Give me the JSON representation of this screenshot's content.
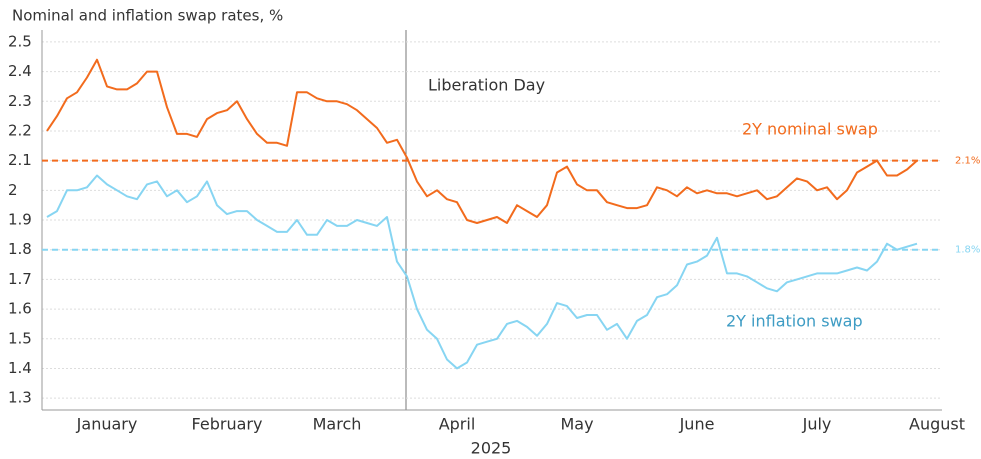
{
  "chart_data": {
    "type": "line",
    "title": "Nominal and inflation swap rates, %",
    "x_label": "2025",
    "annotation": "Liberation Day",
    "categories": [
      null,
      null,
      null,
      null,
      null,
      null,
      "January",
      null,
      null,
      null,
      null,
      null,
      null,
      null,
      null,
      null,
      null,
      null,
      "February",
      null,
      null,
      null,
      null,
      null,
      null,
      null,
      null,
      null,
      null,
      "March",
      null,
      null,
      null,
      null,
      null,
      null,
      null,
      null,
      null,
      null,
      null,
      "April",
      null,
      null,
      null,
      null,
      null,
      null,
      null,
      null,
      null,
      null,
      null,
      "May",
      null,
      null,
      null,
      null,
      null,
      null,
      null,
      null,
      null,
      null,
      null,
      "June",
      null,
      null,
      null,
      null,
      null,
      null,
      null,
      null,
      null,
      null,
      null,
      "July",
      null,
      null,
      null,
      null,
      null,
      null,
      null,
      null,
      null,
      null,
      null,
      "August"
    ],
    "series": [
      {
        "name": "2Y nominal swap",
        "color": "#f26b1d",
        "values": [
          2.2,
          2.25,
          2.31,
          2.33,
          2.38,
          2.44,
          2.35,
          2.34,
          2.34,
          2.36,
          2.4,
          2.4,
          2.28,
          2.19,
          2.19,
          2.18,
          2.24,
          2.26,
          2.27,
          2.3,
          2.24,
          2.19,
          2.16,
          2.16,
          2.15,
          2.33,
          2.33,
          2.31,
          2.3,
          2.3,
          2.29,
          2.27,
          2.24,
          2.21,
          2.16,
          2.17,
          2.11,
          2.03,
          1.98,
          2.0,
          1.97,
          1.96,
          1.9,
          1.89,
          1.9,
          1.91,
          1.89,
          1.95,
          1.93,
          1.91,
          1.95,
          2.06,
          2.08,
          2.02,
          2.0,
          2.0,
          1.96,
          1.95,
          1.94,
          1.94,
          1.95,
          2.01,
          2.0,
          1.98,
          2.01,
          1.99,
          2.0,
          1.99,
          1.99,
          1.98,
          1.99,
          2.0,
          1.97,
          1.98,
          2.01,
          2.04,
          2.03,
          2.0,
          2.01,
          1.97,
          2.0,
          2.06,
          2.08,
          2.1,
          2.05,
          2.05,
          2.07,
          2.1,
          null,
          null
        ]
      },
      {
        "name": "2Y inflation swap",
        "color": "#87d5f2",
        "values": [
          1.91,
          1.93,
          2.0,
          2.0,
          2.01,
          2.05,
          2.02,
          2.0,
          1.98,
          1.97,
          2.02,
          2.03,
          1.98,
          2.0,
          1.96,
          1.98,
          2.03,
          1.95,
          1.92,
          1.93,
          1.93,
          1.9,
          1.88,
          1.86,
          1.86,
          1.9,
          1.85,
          1.85,
          1.9,
          1.88,
          1.88,
          1.9,
          1.89,
          1.88,
          1.91,
          1.76,
          1.71,
          1.6,
          1.53,
          1.5,
          1.43,
          1.4,
          1.42,
          1.48,
          1.49,
          1.5,
          1.55,
          1.56,
          1.54,
          1.51,
          1.55,
          1.62,
          1.61,
          1.57,
          1.58,
          1.58,
          1.53,
          1.55,
          1.5,
          1.56,
          1.58,
          1.64,
          1.65,
          1.68,
          1.75,
          1.76,
          1.78,
          1.84,
          1.72,
          1.72,
          1.71,
          1.69,
          1.67,
          1.66,
          1.69,
          1.7,
          1.71,
          1.72,
          1.72,
          1.72,
          1.73,
          1.74,
          1.73,
          1.76,
          1.82,
          1.8,
          1.81,
          1.82,
          null,
          null
        ]
      }
    ],
    "hlines": [
      {
        "value": 2.1,
        "label": "2.1%",
        "color": "#f26b1d"
      },
      {
        "value": 1.8,
        "label": "1.8%",
        "color": "#87d5f2"
      }
    ],
    "ylim": [
      1.26,
      2.54
    ],
    "yticks": [
      1.3,
      1.4,
      1.5,
      1.6,
      1.7,
      1.8,
      1.9,
      2.0,
      2.1,
      2.2,
      2.3,
      2.4,
      2.5
    ],
    "grid": true
  }
}
